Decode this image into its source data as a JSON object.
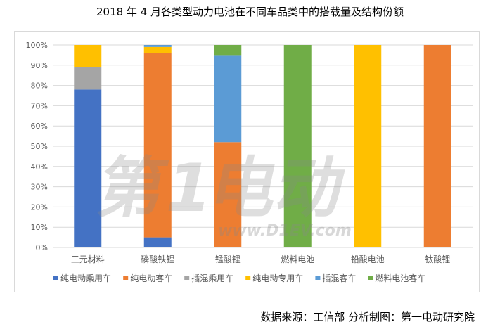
{
  "title": "2018 年 4 月各类型动力电池在不同车品类中的搭载量及结构份额",
  "source": "数据来源：工信部  分析制图：第一电动研究院",
  "watermark": {
    "brand": "第1电动",
    "url": "www.D1EV.com"
  },
  "chart_data": {
    "type": "bar",
    "stacked": "percent",
    "categories": [
      "三元材料",
      "磷酸铁锂",
      "锰酸锂",
      "燃料电池",
      "铅酸电池",
      "钛酸锂"
    ],
    "ylim": [
      0,
      100
    ],
    "yticks": [
      "0%",
      "10%",
      "20%",
      "30%",
      "40%",
      "50%",
      "60%",
      "70%",
      "80%",
      "90%",
      "100%"
    ],
    "legend_position": "bottom",
    "grid": true,
    "series": [
      {
        "name": "纯电动乘用车",
        "color": "#4472C4",
        "values": [
          78,
          5,
          0,
          0,
          0,
          0
        ]
      },
      {
        "name": "纯电动客车",
        "color": "#ED7D31",
        "values": [
          0,
          91,
          52,
          0,
          0,
          100
        ]
      },
      {
        "name": "插混乘用车",
        "color": "#A5A5A5",
        "values": [
          11,
          0,
          0,
          0,
          0,
          0
        ]
      },
      {
        "name": "纯电动专用车",
        "color": "#FFC000",
        "values": [
          11,
          3,
          0,
          0,
          100,
          0
        ]
      },
      {
        "name": "插混客车",
        "color": "#5B9BD5",
        "values": [
          0,
          1,
          43,
          0,
          0,
          0
        ]
      },
      {
        "name": "燃料电池客车",
        "color": "#70AD47",
        "values": [
          0,
          0,
          5,
          100,
          0,
          0
        ]
      }
    ]
  }
}
